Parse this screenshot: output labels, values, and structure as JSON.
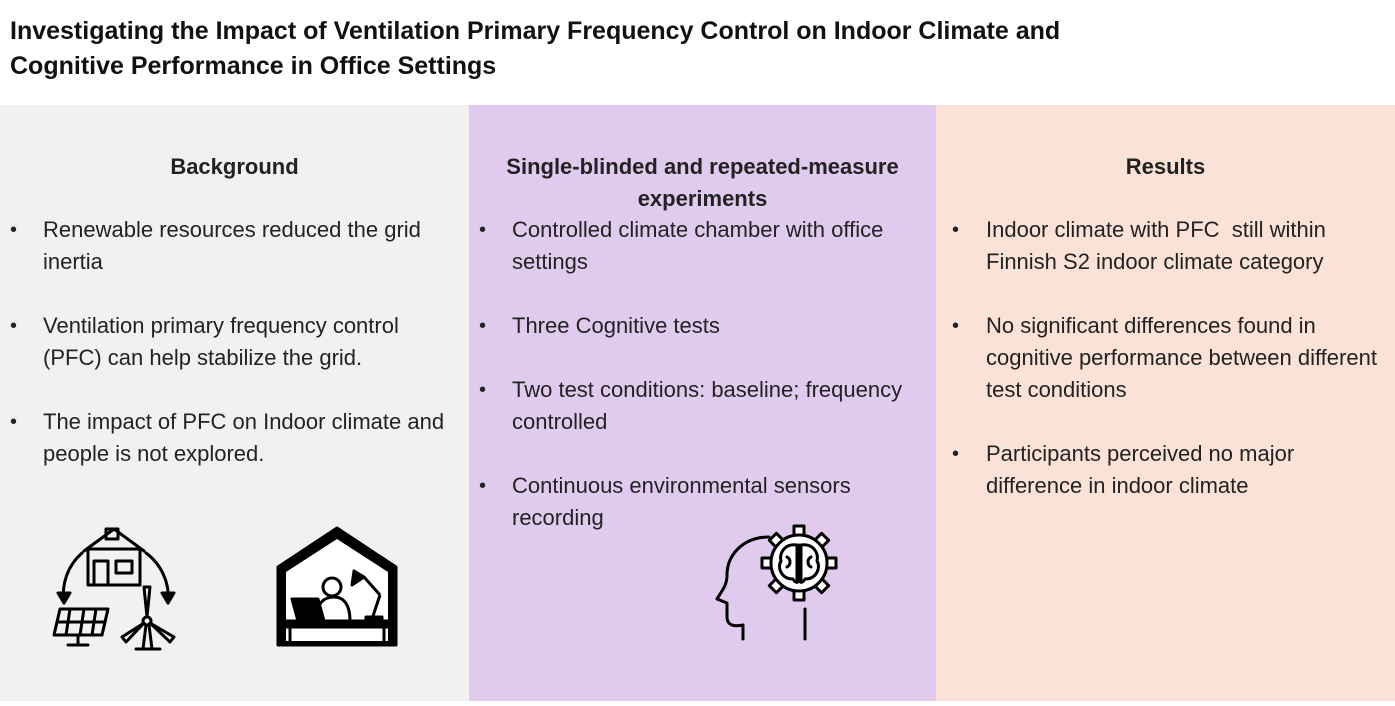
{
  "title": "Investigating the Impact of Ventilation Primary Frequency Control on Indoor Climate and Cognitive Performance in Office Settings",
  "panels": [
    {
      "heading": "Background",
      "color": "#f1f1f1",
      "bullets": [
        "Renewable resources reduced the grid inertia",
        "Ventilation primary frequency control (PFC) can help stabilize the grid.",
        "The impact of PFC on Indoor climate and people is not explored."
      ],
      "icons": [
        "renewable-energy-house-icon",
        "home-office-worker-icon"
      ]
    },
    {
      "heading": "Single-blinded and repeated-measure experiments",
      "color": "#e0cbef",
      "bullets": [
        "Controlled climate chamber with office settings",
        "Three Cognitive tests",
        "Two test conditions: baseline; frequency controlled",
        "Continuous environmental sensors recording"
      ],
      "icons": [
        "brain-gear-head-icon"
      ]
    },
    {
      "heading": "Results",
      "color": "#fae3d6",
      "bullets": [
        "Indoor climate with PFC  still within Finnish S2 indoor climate category",
        "No significant differences found in cognitive performance between different test conditions",
        "Participants perceived no major difference in indoor climate"
      ]
    }
  ],
  "bullet_glyph": "•"
}
